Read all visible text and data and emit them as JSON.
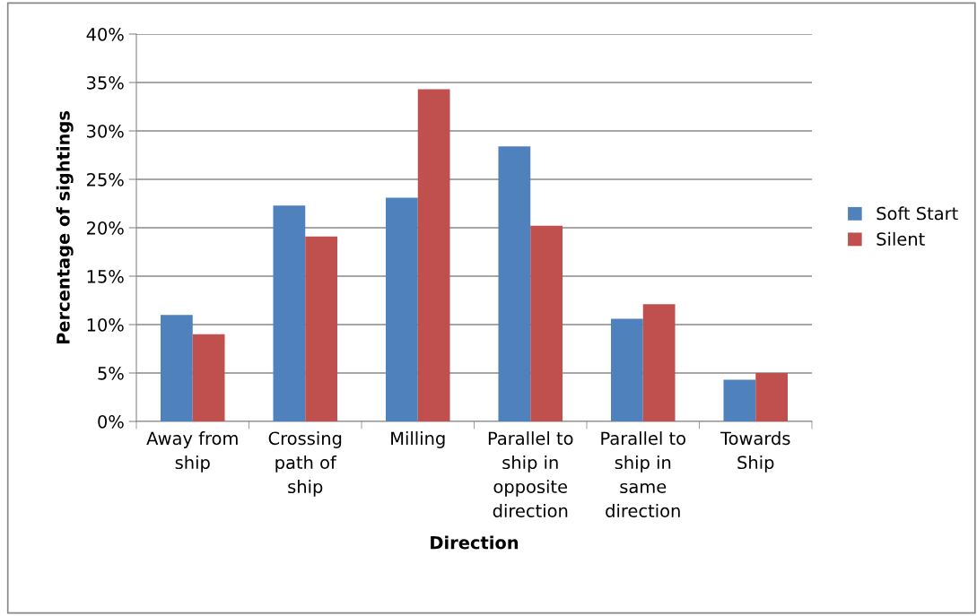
{
  "chart_data": {
    "type": "bar",
    "xlabel": "Direction",
    "ylabel": "Percentage of sightings",
    "categories": [
      "Away from\nship",
      "Crossing\npath of\nship",
      "Milling",
      "Parallel to\nship in\nopposite\ndirection",
      "Parallel to\nship in\nsame\ndirection",
      "Towards\nShip"
    ],
    "series": [
      {
        "name": "Soft Start",
        "color": "#4f81bd",
        "values": [
          11.0,
          22.3,
          23.1,
          28.4,
          10.6,
          4.3
        ]
      },
      {
        "name": "Silent",
        "color": "#c0504d",
        "values": [
          9.0,
          19.1,
          34.3,
          20.2,
          12.1,
          5.0
        ]
      }
    ],
    "ylim": [
      0,
      40
    ],
    "yticks": [
      {
        "value": 0,
        "label": "0%"
      },
      {
        "value": 5,
        "label": "5%"
      },
      {
        "value": 10,
        "label": "10%"
      },
      {
        "value": 15,
        "label": "15%"
      },
      {
        "value": 20,
        "label": "20%"
      },
      {
        "value": 25,
        "label": "25%"
      },
      {
        "value": 30,
        "label": "30%"
      },
      {
        "value": 35,
        "label": "35%"
      },
      {
        "value": 40,
        "label": "40%"
      }
    ],
    "grid": "y",
    "legend": "right"
  }
}
